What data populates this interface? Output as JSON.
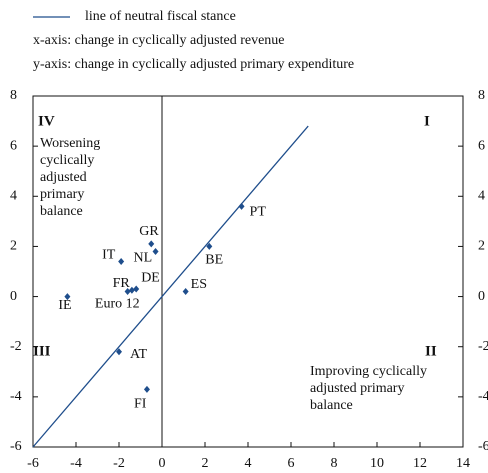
{
  "chart_data": {
    "type": "scatter",
    "legend": [
      "x-axis: change in cyclically adjusted revenue",
      "y-axis: change in cyclically adjusted primary expenditure"
    ],
    "series": [
      {
        "name": "line of neutral fiscal stance",
        "type": "line",
        "color": "#1f4e8c",
        "x": [
          -6,
          6.8
        ],
        "y": [
          -6,
          6.8
        ]
      },
      {
        "type": "scatter",
        "color": "#1f4e8c",
        "labels": [
          "PT",
          "BE",
          "GR",
          "NL",
          "IT",
          "FR",
          "Euro 12",
          "DE",
          "ES",
          "IE",
          "AT",
          "FI"
        ],
        "x": [
          3.7,
          2.2,
          -0.5,
          -0.3,
          -1.9,
          -1.6,
          -1.4,
          -1.2,
          1.1,
          -4.4,
          -2.0,
          -0.7
        ],
        "y": [
          3.6,
          2.0,
          2.1,
          1.8,
          1.4,
          0.2,
          0.25,
          0.3,
          0.2,
          0,
          -2.2,
          -3.7
        ]
      }
    ],
    "quadrants": [
      "IV",
      "I",
      "III",
      "II"
    ],
    "annotations": [
      [
        "Worsening",
        "cyclically",
        "adjusted",
        "primary",
        "balance"
      ],
      [
        "Improving cyclically",
        "adjusted primary",
        "balance"
      ]
    ],
    "xlim": [
      -6,
      14
    ],
    "xticks": [
      -6,
      -4,
      -2,
      0,
      2,
      4,
      6,
      8,
      10,
      12,
      14
    ],
    "ylim": [
      -6,
      8
    ],
    "yticks": [
      -6,
      -4,
      -2,
      0,
      2,
      4,
      6,
      8
    ]
  }
}
